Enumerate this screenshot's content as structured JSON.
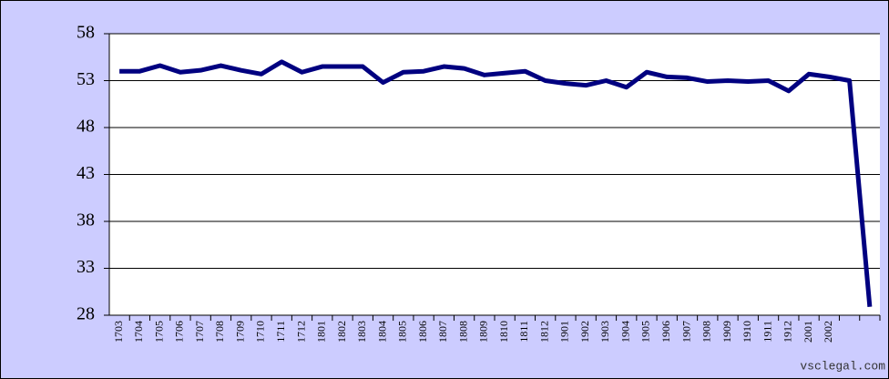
{
  "chart_data": {
    "type": "line",
    "categories": [
      "1703",
      "1704",
      "1705",
      "1706",
      "1707",
      "1708",
      "1709",
      "1710",
      "1711",
      "1712",
      "1801",
      "1802",
      "1803",
      "1804",
      "1805",
      "1806",
      "1807",
      "1808",
      "1809",
      "1810",
      "1811",
      "1812",
      "1901",
      "1902",
      "1903",
      "1904",
      "1905",
      "1906",
      "1907",
      "1908",
      "1909",
      "1910",
      "1911",
      "1912",
      "2001",
      "2002",
      null,
      null
    ],
    "series": [
      {
        "color": "#000080",
        "values": [
          54.0,
          54.0,
          54.6,
          53.9,
          54.1,
          54.6,
          54.1,
          53.7,
          55.0,
          53.9,
          54.5,
          54.5,
          54.5,
          52.8,
          53.9,
          54.0,
          54.5,
          54.3,
          53.6,
          53.8,
          54.0,
          53.0,
          52.7,
          52.5,
          53.0,
          52.3,
          53.9,
          53.4,
          53.3,
          52.9,
          53.0,
          52.9,
          53.0,
          51.9,
          53.7,
          53.4,
          53.0,
          28.9
        ]
      }
    ],
    "ylim": [
      28,
      58
    ],
    "yticks": [
      28,
      33,
      38,
      43,
      48,
      53,
      58
    ],
    "grid": true,
    "watermark": "vsclegal.com"
  }
}
